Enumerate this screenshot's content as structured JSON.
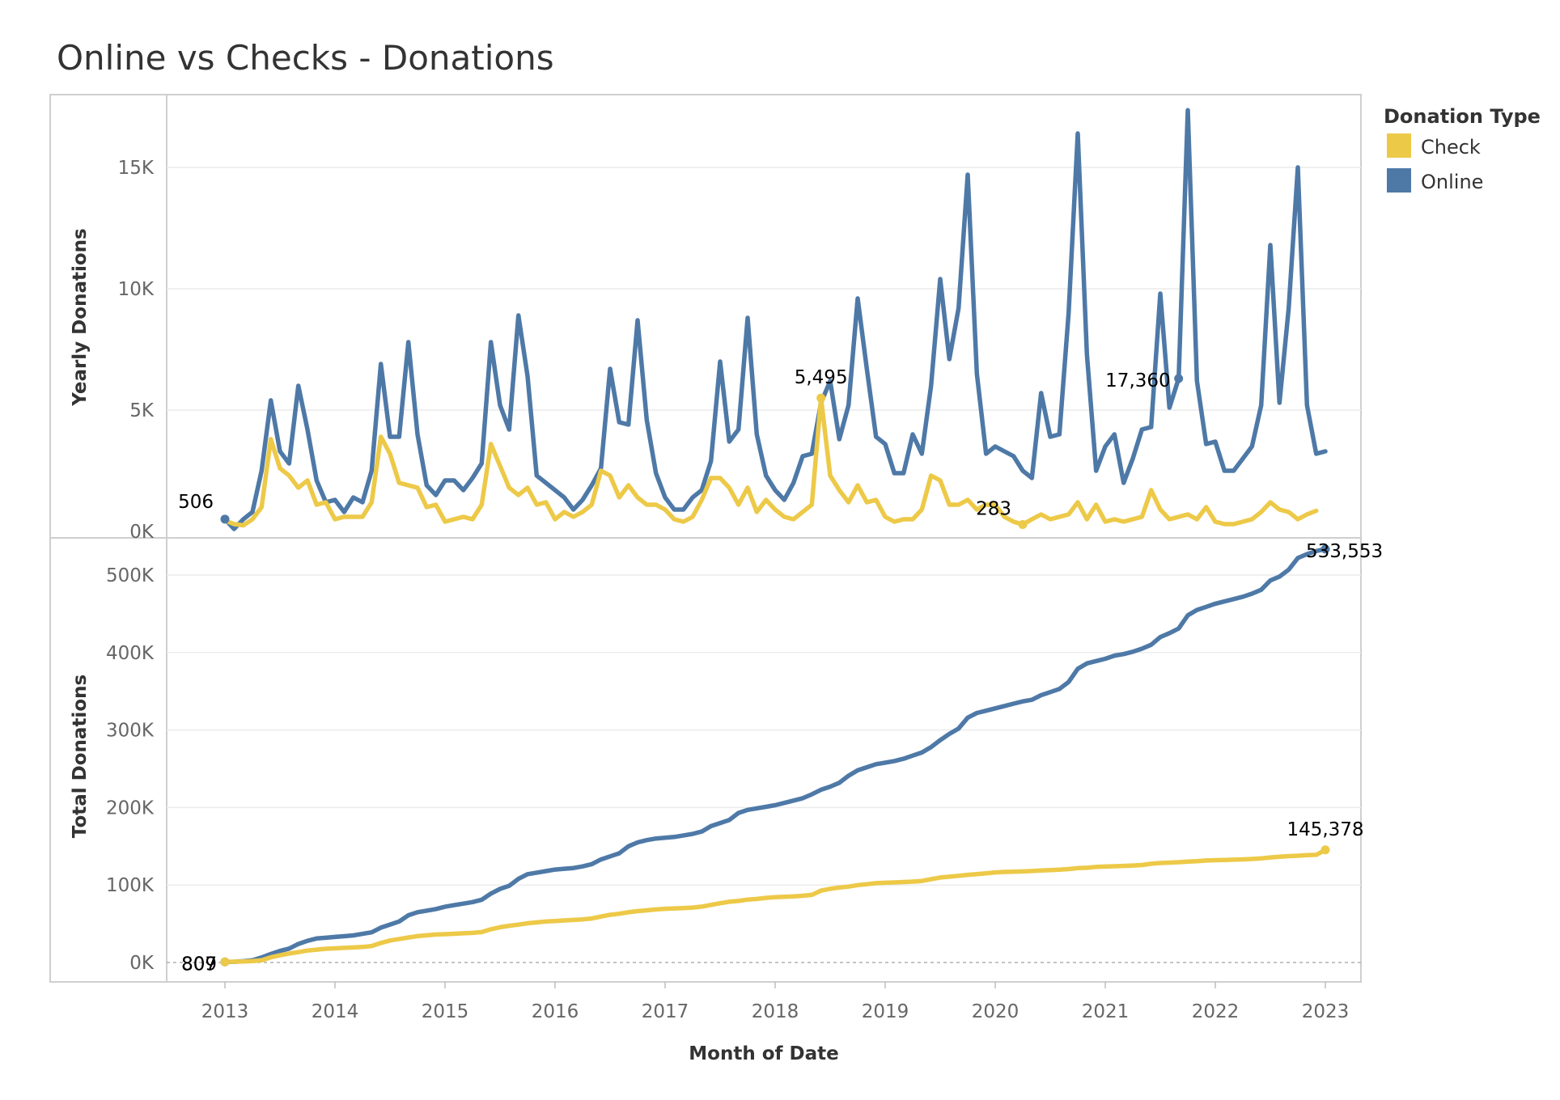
{
  "title": "Online vs Checks - Donations",
  "legend": {
    "title": "Donation Type",
    "items": [
      {
        "label": "Check",
        "color": "#edc948"
      },
      {
        "label": "Online",
        "color": "#4e79a7"
      }
    ]
  },
  "chart_data": [
    {
      "type": "line",
      "name": "yearly-donations",
      "ylabel": "Yearly Donations",
      "xlabel": "",
      "ylim": [
        0,
        18000
      ],
      "yticks": [
        0,
        5000,
        10000,
        15000
      ],
      "ytick_labels": [
        "0K",
        "5K",
        "10K",
        "15K"
      ],
      "x_start": "2013-01",
      "series": [
        {
          "name": "Online",
          "color": "#4e79a7",
          "values": [
            506,
            100,
            500,
            800,
            2500,
            5400,
            3300,
            2800,
            6000,
            4200,
            2100,
            1200,
            1300,
            800,
            1400,
            1200,
            2500,
            6900,
            3900,
            3900,
            7800,
            4000,
            1900,
            1500,
            2100,
            2100,
            1700,
            2200,
            2800,
            7800,
            5200,
            4200,
            8900,
            6400,
            2300,
            2000,
            1700,
            1400,
            900,
            1300,
            1900,
            2600,
            6700,
            4500,
            4400,
            8700,
            4600,
            2400,
            1400,
            900,
            900,
            1400,
            1700,
            2900,
            7000,
            3700,
            4200,
            8800,
            4000,
            2300,
            1700,
            1300,
            2000,
            3100,
            3200,
            5300,
            6200,
            3800,
            5200,
            9600,
            6700,
            3900,
            3600,
            2400,
            2400,
            4000,
            3200,
            6000,
            10400,
            7100,
            9200,
            14700,
            6500,
            3200,
            3500,
            3300,
            3100,
            2500,
            2200,
            5700,
            3900,
            4000,
            9000,
            16400,
            7300,
            2500,
            3500,
            4000,
            2000,
            3000,
            4200,
            4300,
            9800,
            5100,
            6300,
            17360,
            6200,
            3600,
            3700,
            2500,
            2500,
            3000,
            3500,
            5200,
            11800,
            5300,
            9200,
            15000,
            5200,
            3200,
            3300
          ]
        },
        {
          "name": "Check",
          "color": "#edc948",
          "values": [
            450,
            300,
            250,
            500,
            1000,
            3800,
            2600,
            2300,
            1800,
            2100,
            1100,
            1200,
            500,
            600,
            600,
            600,
            1200,
            3900,
            3200,
            2000,
            1900,
            1800,
            1000,
            1100,
            400,
            500,
            600,
            500,
            1100,
            3600,
            2700,
            1800,
            1500,
            1800,
            1100,
            1200,
            500,
            800,
            600,
            800,
            1100,
            2500,
            2300,
            1400,
            1900,
            1400,
            1100,
            1100,
            900,
            500,
            400,
            600,
            1300,
            2200,
            2200,
            1800,
            1100,
            1800,
            800,
            1300,
            900,
            600,
            500,
            800,
            1100,
            5495,
            2300,
            1700,
            1200,
            1900,
            1200,
            1300,
            600,
            400,
            500,
            500,
            900,
            2300,
            2100,
            1100,
            1100,
            1300,
            900,
            1100,
            1100,
            600,
            400,
            283,
            500,
            700,
            500,
            600,
            700,
            1200,
            500,
            1100,
            400,
            500,
            400,
            500,
            600,
            1700,
            900,
            500,
            600,
            700,
            500,
            1000,
            400,
            300,
            300,
            400,
            500,
            800,
            1200,
            900,
            800,
            500,
            700,
            850
          ]
        }
      ],
      "annotations": [
        {
          "text": "506",
          "series": "Online",
          "index": 0
        },
        {
          "text": "5,495",
          "series": "Check",
          "index": 65
        },
        {
          "text": "283",
          "series": "Check",
          "index": 87
        },
        {
          "text": "17,360",
          "series": "Online",
          "index": 104
        }
      ]
    },
    {
      "type": "line",
      "name": "total-donations",
      "ylabel": "Total Donations",
      "xlabel": "Month of Date",
      "ylim": [
        -25000,
        548000
      ],
      "yticks": [
        0,
        100000,
        200000,
        300000,
        400000,
        500000
      ],
      "ytick_labels": [
        "0K",
        "100K",
        "200K",
        "300K",
        "400K",
        "500K"
      ],
      "xticks": [
        "2013",
        "2014",
        "2015",
        "2016",
        "2017",
        "2018",
        "2019",
        "2020",
        "2021",
        "2022",
        "2023"
      ],
      "x_start": "2013-01",
      "series": [
        {
          "name": "Online",
          "color": "#4e79a7",
          "values": [
            807,
            1000,
            1700,
            3000,
            6500,
            11000,
            15000,
            18000,
            24000,
            28000,
            31000,
            32000,
            33000,
            34000,
            35000,
            37000,
            39000,
            45000,
            49000,
            53000,
            61000,
            65000,
            67000,
            69000,
            72000,
            74000,
            76000,
            78000,
            81000,
            89000,
            95000,
            99000,
            108000,
            114000,
            116000,
            118000,
            120000,
            121000,
            122000,
            124000,
            127000,
            133000,
            137000,
            141000,
            150000,
            155000,
            158000,
            160000,
            161000,
            162000,
            164000,
            166000,
            169000,
            176000,
            180000,
            184000,
            193000,
            197000,
            199000,
            201000,
            203000,
            206000,
            209000,
            212000,
            217000,
            223000,
            227000,
            232000,
            241000,
            248000,
            252000,
            256000,
            258000,
            260000,
            263000,
            267000,
            271000,
            278000,
            287000,
            295000,
            302000,
            316000,
            322000,
            325000,
            328000,
            331000,
            334000,
            337000,
            339000,
            345000,
            349000,
            353000,
            362000,
            379000,
            386000,
            389000,
            392000,
            396000,
            398000,
            401000,
            405000,
            410000,
            420000,
            425000,
            431000,
            448000,
            455000,
            459000,
            463000,
            466000,
            469000,
            472000,
            476000,
            481000,
            493000,
            498000,
            507000,
            522000,
            527000,
            531000,
            533553
          ]
        },
        {
          "name": "Check",
          "color": "#edc948",
          "values": [
            809,
            1100,
            1400,
            1900,
            2900,
            6700,
            9300,
            11600,
            13400,
            15500,
            16600,
            17800,
            18300,
            18900,
            19500,
            20100,
            21300,
            25200,
            28400,
            30400,
            32300,
            34100,
            35100,
            36200,
            36600,
            37100,
            37700,
            38200,
            39300,
            42900,
            45600,
            47400,
            48900,
            50700,
            51800,
            53000,
            53500,
            54300,
            54900,
            55700,
            56800,
            59300,
            61600,
            63000,
            64900,
            66300,
            67400,
            68500,
            69400,
            69900,
            70300,
            70900,
            72200,
            74400,
            76600,
            78400,
            79500,
            81300,
            82100,
            83400,
            84300,
            84900,
            85400,
            86200,
            87300,
            92800,
            95100,
            96800,
            98000,
            99900,
            101100,
            102400,
            103000,
            103400,
            103900,
            104400,
            105300,
            107600,
            109700,
            110800,
            111900,
            113200,
            114100,
            115200,
            116300,
            116900,
            117300,
            117583,
            118100,
            118800,
            119300,
            119900,
            120600,
            121800,
            122300,
            123400,
            123800,
            124300,
            124700,
            125200,
            125800,
            127500,
            128400,
            128900,
            129500,
            130200,
            130700,
            131700,
            132100,
            132400,
            132700,
            133100,
            133600,
            134400,
            135600,
            136500,
            137300,
            137800,
            138500,
            139000,
            145378
          ]
        }
      ],
      "annotations": [
        {
          "text": "807",
          "series": "Online",
          "index": 0
        },
        {
          "text": "809",
          "series": "Check",
          "index": 0
        },
        {
          "text": "533,553",
          "series": "Online",
          "index": 120
        },
        {
          "text": "145,378",
          "series": "Check",
          "index": 120
        }
      ]
    }
  ]
}
